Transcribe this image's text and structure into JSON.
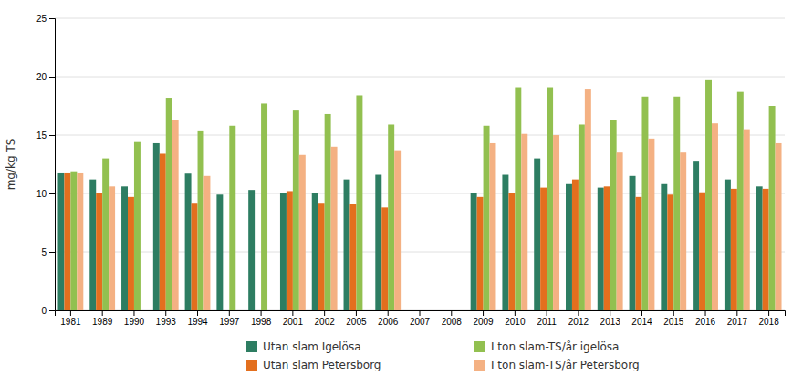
{
  "chart_data": {
    "type": "bar",
    "y_label": "mg/kg TS",
    "categories": [
      "1981",
      "1989",
      "1990",
      "1993",
      "1994",
      "1997",
      "1998",
      "2001",
      "2002",
      "2005",
      "2006",
      "2007",
      "2008",
      "2009",
      "2010",
      "2011",
      "2012",
      "2013",
      "2014",
      "2015",
      "2016",
      "2017",
      "2018"
    ],
    "series": [
      {
        "name": "Utan slam Igelösa",
        "color": "#2d7d62",
        "values": [
          11.8,
          11.2,
          10.6,
          14.3,
          11.7,
          9.9,
          10.3,
          10.0,
          10.0,
          11.2,
          11.6,
          null,
          null,
          10.0,
          11.6,
          13.0,
          10.8,
          10.5,
          11.5,
          10.8,
          12.8,
          11.2,
          10.6
        ]
      },
      {
        "name": "Utan slam Petersborg",
        "color": "#e36f1e",
        "values": [
          11.8,
          10.0,
          9.7,
          13.4,
          9.2,
          null,
          null,
          10.2,
          9.2,
          9.1,
          8.8,
          null,
          null,
          9.7,
          10.0,
          10.5,
          11.2,
          10.6,
          9.7,
          9.9,
          10.1,
          10.4,
          10.4
        ]
      },
      {
        "name": "I ton slam-TS/år igelösa",
        "color": "#92c050",
        "values": [
          11.9,
          13.0,
          14.4,
          18.2,
          15.4,
          15.8,
          17.7,
          17.1,
          16.8,
          18.4,
          15.9,
          null,
          null,
          15.8,
          19.1,
          19.1,
          15.9,
          16.3,
          18.3,
          18.3,
          19.7,
          18.7,
          17.5
        ]
      },
      {
        "name": "I ton slam-TS/år Petersborg",
        "color": "#f4b183",
        "values": [
          11.8,
          10.6,
          null,
          16.3,
          11.5,
          null,
          null,
          13.3,
          14.0,
          null,
          13.7,
          null,
          null,
          14.3,
          15.1,
          15.0,
          18.9,
          13.5,
          14.7,
          13.5,
          16.0,
          15.5,
          14.3
        ]
      }
    ],
    "ylim": [
      0,
      25
    ],
    "yticks": [
      0,
      5,
      10,
      15,
      20,
      25
    ],
    "grid": true,
    "legend": "bottom"
  }
}
